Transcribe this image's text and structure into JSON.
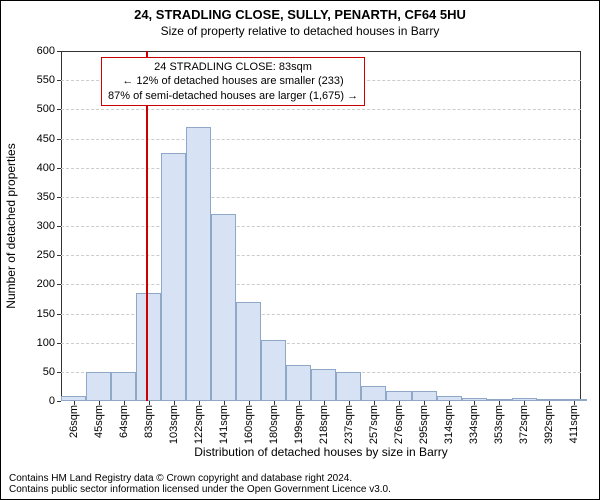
{
  "title": "24, STRADLING CLOSE, SULLY, PENARTH, CF64 5HU",
  "subtitle": "Size of property relative to detached houses in Barry",
  "ylabel": "Number of detached properties",
  "xlabel": "Distribution of detached houses by size in Barry",
  "footer_line1": "Contains HM Land Registry data © Crown copyright and database right 2024.",
  "footer_line2": "Contains public sector information licensed under the Open Government Licence v3.0.",
  "annotation": {
    "line1": "24 STRADLING CLOSE: 83sqm",
    "line2": "← 12% of detached houses are smaller (233)",
    "line3": "87% of semi-detached houses are larger (1,675) →",
    "border_color": "#cc0000",
    "fontsize": 11
  },
  "chart": {
    "type": "histogram",
    "background_color": "#ffffff",
    "grid_color": "#cccccc",
    "axis_color": "#333333",
    "bar_fill": "#d7e3f4",
    "bar_border": "#8fa8c8",
    "bar_border_width": 1,
    "marker_color": "#cc0000",
    "marker_width": 2,
    "marker_x": 83,
    "title_fontsize": 13,
    "subtitle_fontsize": 12,
    "label_fontsize": 12,
    "tick_fontsize": 11,
    "footer_fontsize": 10,
    "ylim": [
      0,
      600
    ],
    "ytick_step": 50,
    "x_min": 16,
    "x_max": 421,
    "x_bin_width": 19.5,
    "x_tick_labels": [
      "26sqm",
      "45sqm",
      "64sqm",
      "83sqm",
      "103sqm",
      "122sqm",
      "141sqm",
      "160sqm",
      "180sqm",
      "199sqm",
      "218sqm",
      "237sqm",
      "257sqm",
      "276sqm",
      "295sqm",
      "314sqm",
      "334sqm",
      "353sqm",
      "372sqm",
      "392sqm",
      "411sqm"
    ],
    "values": [
      8,
      50,
      50,
      185,
      425,
      470,
      320,
      170,
      105,
      62,
      55,
      50,
      25,
      18,
      18,
      8,
      5,
      3,
      5,
      3,
      3
    ]
  }
}
